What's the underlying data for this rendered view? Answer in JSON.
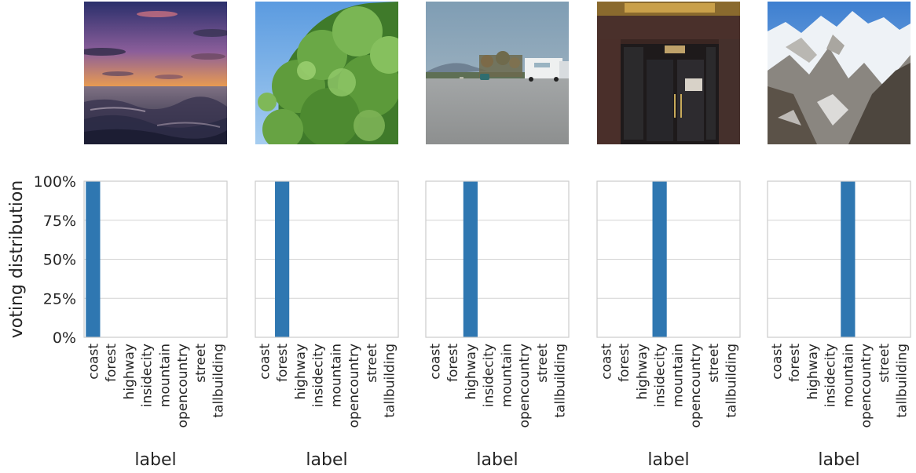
{
  "figure": {
    "ylabel": "voting distribution",
    "xlabel": "label",
    "colors": {
      "bar": "#2f77b1",
      "grid": "#d3d3d3",
      "frame": "#cccccc",
      "text": "#262626"
    },
    "photos": [
      {
        "scene": "coast",
        "icon": "sunset-coast-photo"
      },
      {
        "scene": "forest",
        "icon": "tree-against-sky-photo"
      },
      {
        "scene": "highway",
        "icon": "highway-with-truck-photo"
      },
      {
        "scene": "insidecity",
        "icon": "storefront-doors-photo"
      },
      {
        "scene": "mountain",
        "icon": "snowy-mountains-photo"
      }
    ]
  },
  "chart_data": [
    {
      "type": "bar",
      "categories": [
        "coast",
        "forest",
        "highway",
        "insidecity",
        "mountain",
        "opencountry",
        "street",
        "tallbuilding"
      ],
      "values": [
        100,
        0,
        0,
        0,
        0,
        0,
        0,
        0
      ],
      "xlabel": "label",
      "ylabel": "voting distribution",
      "ylim": [
        0,
        100
      ],
      "yticks": [
        "0%",
        "25%",
        "50%",
        "75%",
        "100%"
      ],
      "grid": "horizontal"
    },
    {
      "type": "bar",
      "categories": [
        "coast",
        "forest",
        "highway",
        "insidecity",
        "mountain",
        "opencountry",
        "street",
        "tallbuilding"
      ],
      "values": [
        0,
        100,
        0,
        0,
        0,
        0,
        0,
        0
      ],
      "xlabel": "label",
      "ylabel": "",
      "ylim": [
        0,
        100
      ],
      "yticks": [],
      "grid": "horizontal"
    },
    {
      "type": "bar",
      "categories": [
        "coast",
        "forest",
        "highway",
        "insidecity",
        "mountain",
        "opencountry",
        "street",
        "tallbuilding"
      ],
      "values": [
        0,
        0,
        100,
        0,
        0,
        0,
        0,
        0
      ],
      "xlabel": "label",
      "ylabel": "",
      "ylim": [
        0,
        100
      ],
      "yticks": [],
      "grid": "horizontal"
    },
    {
      "type": "bar",
      "categories": [
        "coast",
        "forest",
        "highway",
        "insidecity",
        "mountain",
        "opencountry",
        "street",
        "tallbuilding"
      ],
      "values": [
        0,
        0,
        0,
        100,
        0,
        0,
        0,
        0
      ],
      "xlabel": "label",
      "ylabel": "",
      "ylim": [
        0,
        100
      ],
      "yticks": [],
      "grid": "horizontal"
    },
    {
      "type": "bar",
      "categories": [
        "coast",
        "forest",
        "highway",
        "insidecity",
        "mountain",
        "opencountry",
        "street",
        "tallbuilding"
      ],
      "values": [
        0,
        0,
        0,
        0,
        100,
        0,
        0,
        0
      ],
      "xlabel": "label",
      "ylabel": "",
      "ylim": [
        0,
        100
      ],
      "yticks": [],
      "grid": "horizontal"
    }
  ]
}
